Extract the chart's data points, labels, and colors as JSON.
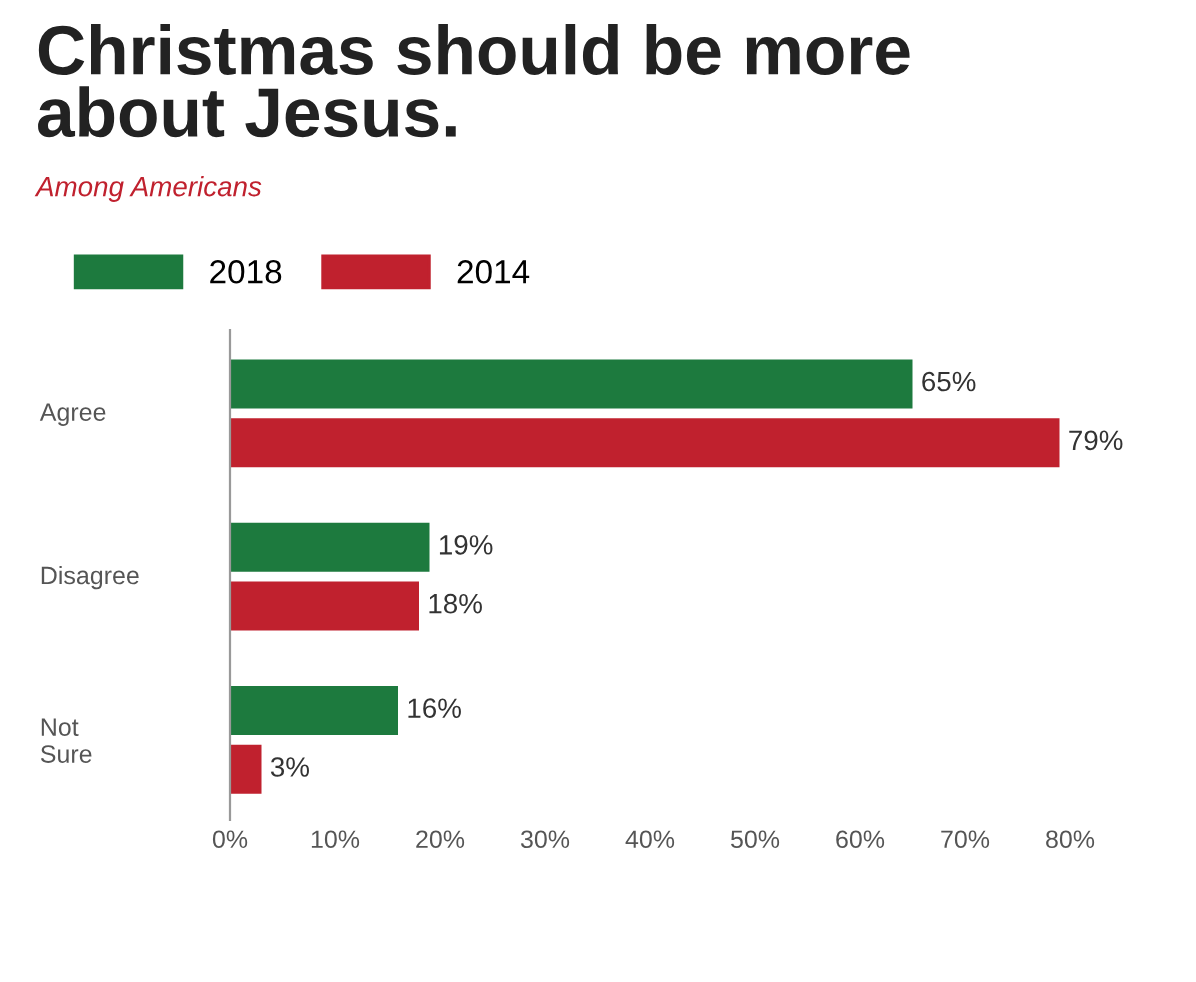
{
  "chart_data": {
    "type": "bar",
    "orientation": "horizontal",
    "title": "Christmas should be more\nabout Jesus.",
    "subtitle": "Among Americans",
    "categories": [
      "Agree",
      "Disagree",
      "Not\nSure"
    ],
    "series": [
      {
        "name": "2018",
        "color": "#1d7a3e",
        "values": [
          65,
          19,
          16
        ],
        "value_labels": [
          "65%",
          "19%",
          "16%"
        ]
      },
      {
        "name": "2014",
        "color": "#c0212e",
        "values": [
          79,
          18,
          3
        ],
        "value_labels": [
          "79%",
          "18%",
          "3%"
        ]
      }
    ],
    "xlim": [
      0,
      80
    ],
    "xticks": [
      {
        "value": 0,
        "label": "0%"
      },
      {
        "value": 10,
        "label": "10%"
      },
      {
        "value": 20,
        "label": "20%"
      },
      {
        "value": 30,
        "label": "30%"
      },
      {
        "value": 40,
        "label": "40%"
      },
      {
        "value": 50,
        "label": "50%"
      },
      {
        "value": 60,
        "label": "60%"
      },
      {
        "value": 70,
        "label": "70%"
      },
      {
        "value": 80,
        "label": "80%"
      }
    ],
    "grid": false,
    "legend": "top left"
  }
}
